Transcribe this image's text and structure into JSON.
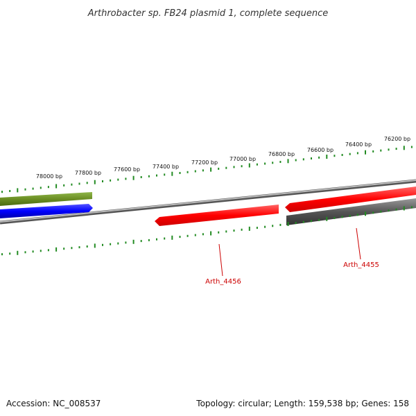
{
  "header": {
    "title": "Arthrobacter sp. FB24 plasmid 1, complete sequence"
  },
  "footer": {
    "accession": "Accession: NC_008537",
    "summary": "Topology: circular; Length: 159,538 bp; Genes: 158"
  },
  "scale": {
    "labels": [
      "78000 bp",
      "77800 bp",
      "77600 bp",
      "77400 bp",
      "77200 bp",
      "77000 bp",
      "76800 bp",
      "76600 bp",
      "76400 bp",
      "76200 bp"
    ]
  },
  "genes": [
    {
      "name": "Arth_4456",
      "strand": "reverse",
      "color": "#ff0000"
    },
    {
      "name": "Arth_4455",
      "strand": "forward",
      "color": "#ff0000"
    }
  ],
  "colors": {
    "olive_feature": "#6b8e23",
    "blue_feature": "#0000ff",
    "red_feature": "#ff0000",
    "gray_feature": "#555555",
    "backbone": "#888888",
    "tick": "#228b22"
  }
}
